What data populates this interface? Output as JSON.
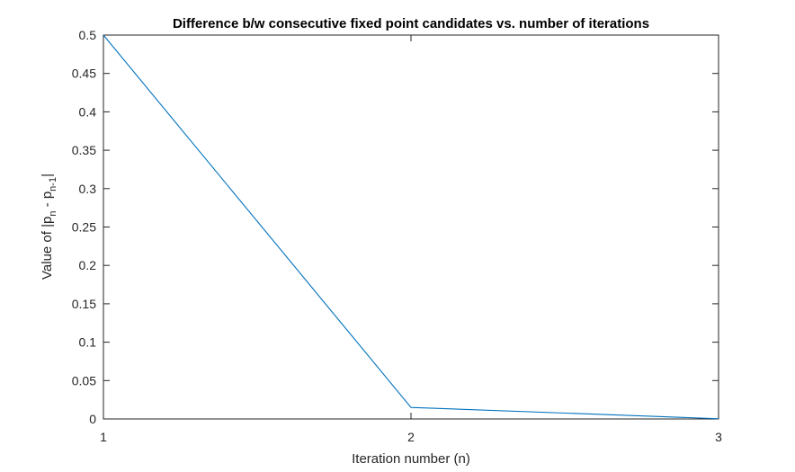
{
  "chart_data": {
    "type": "line",
    "title": "Difference b/w consecutive fixed point candidates vs. number of iterations",
    "xlabel": "Iteration number (n)",
    "ylabel": {
      "prefix": "Value of |p",
      "sub_n": "n",
      "middle": " - p",
      "sub_n1": "n-1",
      "suffix": "|"
    },
    "xlim": [
      1,
      3
    ],
    "ylim": [
      0,
      0.5
    ],
    "xticks": [
      1,
      2,
      3
    ],
    "xtick_labels": [
      "1",
      "2",
      "3"
    ],
    "yticks": [
      0,
      0.05,
      0.1,
      0.15,
      0.2,
      0.25,
      0.3,
      0.35,
      0.4,
      0.45,
      0.5
    ],
    "ytick_labels": [
      "0",
      "0.05",
      "0.1",
      "0.15",
      "0.2",
      "0.25",
      "0.3",
      "0.35",
      "0.4",
      "0.45",
      "0.5"
    ],
    "grid": false,
    "box": true,
    "series": [
      {
        "color": "#0072BD",
        "x": [
          1,
          2,
          3
        ],
        "y": [
          0.5,
          0.015,
          0.0003
        ]
      }
    ]
  }
}
